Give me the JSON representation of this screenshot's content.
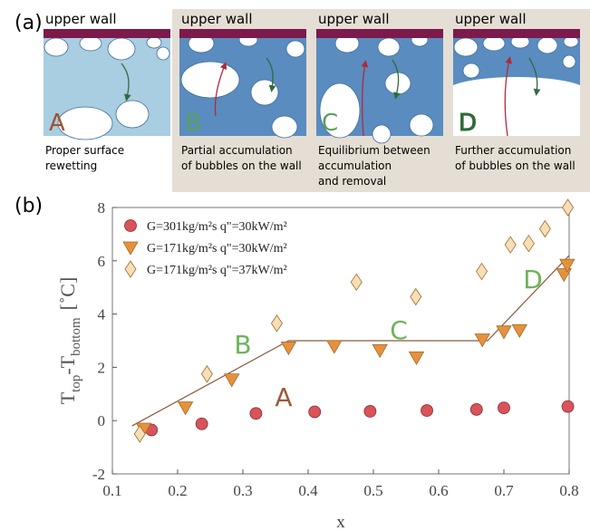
{
  "panel_a": {
    "label": "(a)",
    "images": [
      {
        "wall": "upper wall",
        "letter": "A",
        "caption": [
          "Proper surface",
          "rewetting"
        ]
      },
      {
        "wall": "upper wall",
        "letter": "B",
        "caption": [
          "Partial accumulation",
          "of bubbles on the wall"
        ]
      },
      {
        "wall": "upper wall",
        "letter": "C",
        "caption": [
          "Equilibrium between",
          "accumulation",
          "and removal"
        ]
      },
      {
        "wall": "upper wall",
        "letter": "D",
        "caption": [
          "Further  accumulation",
          "of bubbles on the wall"
        ]
      }
    ]
  },
  "panel_b_label": "(b)",
  "chart_data": {
    "type": "scatter",
    "xlabel": "x",
    "ylabel": [
      "T",
      "top",
      "-T",
      "bottom",
      "[˚C]"
    ],
    "xlim": [
      0.1,
      0.8
    ],
    "ylim": [
      -2,
      8
    ],
    "xticks": [
      0.1,
      0.2,
      0.3,
      0.4,
      0.5,
      0.6,
      0.7,
      0.8
    ],
    "yticks": [
      -2,
      0,
      2,
      4,
      6,
      8
    ],
    "legend": "upper left",
    "series": [
      {
        "name": "G=301kg/m²s q\"=30kW/m²",
        "marker": "circle",
        "color": "#d9545a",
        "x": [
          0.16,
          0.237,
          0.32,
          0.41,
          0.495,
          0.582,
          0.658,
          0.7,
          0.798
        ],
        "values": [
          -0.35,
          -0.12,
          0.27,
          0.33,
          0.35,
          0.38,
          0.42,
          0.48,
          0.53
        ]
      },
      {
        "name": "G=171kg/m²s q\"=30kW/m²",
        "marker": "triangle",
        "color": "#e8913c",
        "x": [
          0.148,
          0.212,
          0.283,
          0.37,
          0.44,
          0.51,
          0.566,
          0.667,
          0.7,
          0.724,
          0.792,
          0.797
        ],
        "values": [
          -0.3,
          0.5,
          1.55,
          2.75,
          2.8,
          2.65,
          2.38,
          3.05,
          3.35,
          3.4,
          5.5,
          5.85
        ]
      },
      {
        "name": "G=171kg/m²s q\"=37kW/m²",
        "marker": "diamond",
        "color": "#f6dfb6",
        "x": [
          0.142,
          0.245,
          0.352,
          0.474,
          0.565,
          0.666,
          0.71,
          0.738,
          0.763,
          0.798
        ],
        "values": [
          -0.5,
          1.75,
          3.65,
          5.2,
          4.65,
          5.6,
          6.6,
          6.65,
          7.2,
          8.0
        ]
      }
    ],
    "trend": {
      "color": "#8b5a3c",
      "x": [
        0.13,
        0.37,
        0.675,
        0.8
      ],
      "values": [
        -0.2,
        3.0,
        3.0,
        6.2
      ]
    },
    "annotations": [
      {
        "text": "A",
        "color": "#9c5a3a"
      },
      {
        "text": "B",
        "color": "#6db35a"
      },
      {
        "text": "C",
        "color": "#6db35a"
      },
      {
        "text": "D",
        "color": "#6db35a"
      }
    ]
  }
}
